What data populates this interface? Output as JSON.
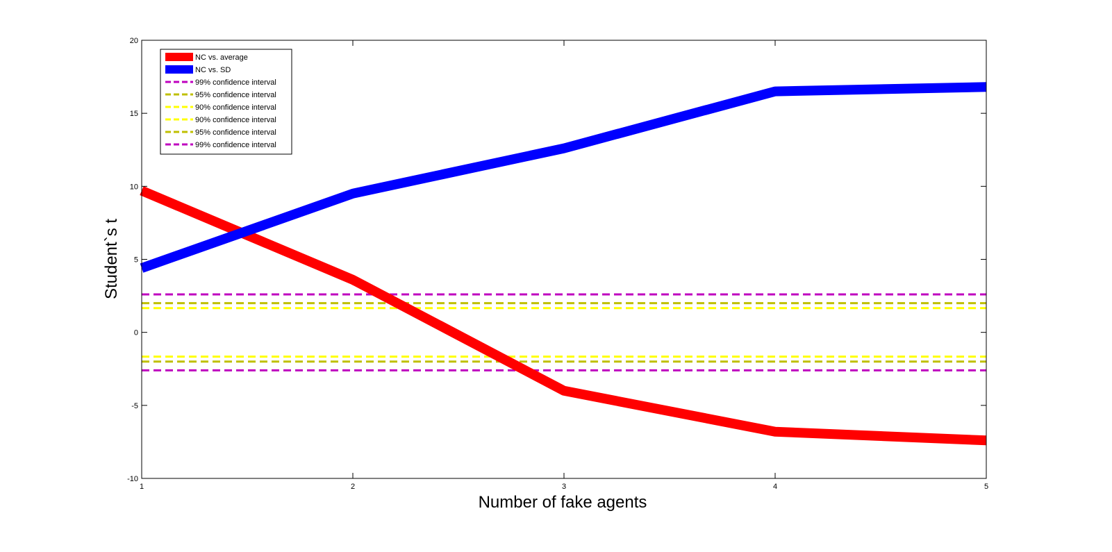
{
  "chart_data": {
    "type": "line",
    "title": "",
    "xlabel": "Number of fake agents",
    "ylabel": "Student`s t",
    "xlim": [
      1,
      5
    ],
    "ylim": [
      -10,
      20
    ],
    "xticks": [
      1,
      2,
      3,
      4,
      5
    ],
    "yticks": [
      -10,
      -5,
      0,
      5,
      10,
      15,
      20
    ],
    "grid": false,
    "legend_position": "top-left",
    "x": [
      1,
      2,
      3,
      4,
      5
    ],
    "series": [
      {
        "name": "NC vs. average",
        "color": "#ff0000",
        "style": "solid-thick",
        "values": [
          9.7,
          3.6,
          -4.0,
          -6.8,
          -7.4
        ]
      },
      {
        "name": "NC vs. SD",
        "color": "#0000ff",
        "style": "solid-thick",
        "values": [
          4.4,
          9.5,
          12.6,
          16.5,
          16.8
        ]
      },
      {
        "name": "99% confidence interval",
        "color": "#bf00bf",
        "style": "dashed",
        "values": [
          2.6,
          2.6,
          2.6,
          2.6,
          2.6
        ]
      },
      {
        "name": "95% confidence interval",
        "color": "#bfbf00",
        "style": "dashed",
        "values": [
          2.0,
          2.0,
          2.0,
          2.0,
          2.0
        ]
      },
      {
        "name": "90% confidence interval",
        "color": "#ffff00",
        "style": "dashed",
        "values": [
          1.66,
          1.66,
          1.66,
          1.66,
          1.66
        ]
      },
      {
        "name": "90% confidence interval",
        "color": "#ffff00",
        "style": "dashed",
        "values": [
          -1.66,
          -1.66,
          -1.66,
          -1.66,
          -1.66
        ]
      },
      {
        "name": "95% confidence interval",
        "color": "#bfbf00",
        "style": "dashed",
        "values": [
          -2.0,
          -2.0,
          -2.0,
          -2.0,
          -2.0
        ]
      },
      {
        "name": "99% confidence interval",
        "color": "#bf00bf",
        "style": "dashed",
        "values": [
          -2.6,
          -2.6,
          -2.6,
          -2.6,
          -2.6
        ]
      }
    ]
  }
}
